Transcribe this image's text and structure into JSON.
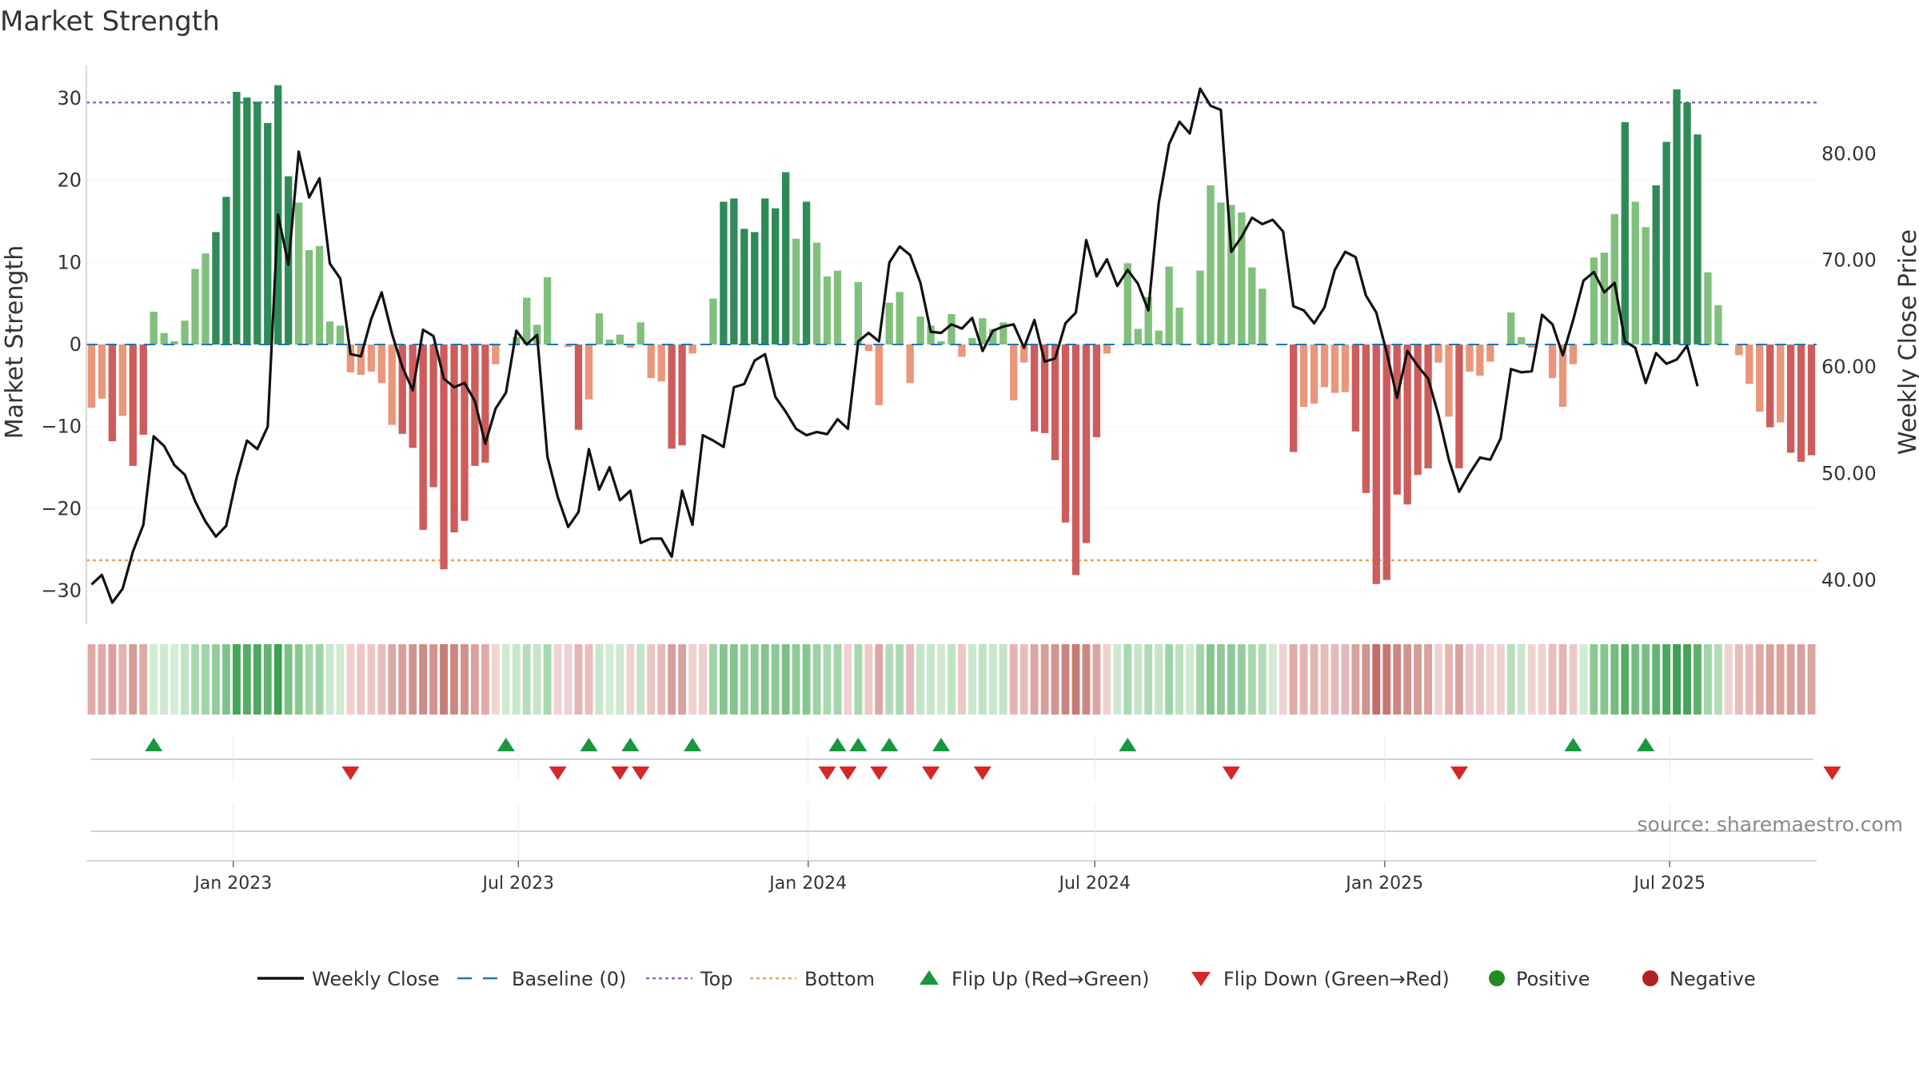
{
  "chart_data": {
    "type": "bar",
    "title": "Market Strength",
    "ylabel_left": "Market Strength",
    "ylabel_right": "Weekly Close Price",
    "ylim_left": [
      -34,
      34
    ],
    "ylim_right": [
      35.95,
      88.27
    ],
    "yticks_left": [
      30,
      20,
      10,
      0,
      -10,
      -20,
      -30
    ],
    "yticks_left_labels": [
      "30",
      "20",
      "10",
      "0",
      "−10",
      "−20",
      "−30"
    ],
    "yticks_right": [
      80,
      70,
      60,
      50,
      40
    ],
    "yticks_right_labels": [
      "80.00",
      "70.00",
      "60.00",
      "50.00",
      "40.00"
    ],
    "top_level": 29.5,
    "bottom_level": -26.3,
    "start_date": "2022-10-03",
    "end_date": "2025-09-29",
    "xticks": [
      {
        "date": "2023-01-01",
        "label": "Jan 2023"
      },
      {
        "date": "2023-07-01",
        "label": "Jul 2023"
      },
      {
        "date": "2024-01-01",
        "label": "Jan 2024"
      },
      {
        "date": "2024-07-01",
        "label": "Jul 2024"
      },
      {
        "date": "2025-01-01",
        "label": "Jan 2025"
      },
      {
        "date": "2025-07-01",
        "label": "Jul 2025"
      }
    ],
    "strength": [
      -7.7,
      -6.6,
      -11.8,
      -8.7,
      -14.8,
      -11,
      4,
      1.4,
      0.4,
      2.9,
      9.2,
      11.1,
      13.7,
      18,
      30.8,
      30.1,
      29.6,
      27,
      31.6,
      20.5,
      17.3,
      11.5,
      12,
      2.8,
      2.3,
      -3.4,
      -3.7,
      -3.3,
      -4.7,
      -9.8,
      -10.9,
      -12.6,
      -22.6,
      -17.4,
      -27.4,
      -22.9,
      -21.5,
      -14.8,
      -14.4,
      -2.4,
      0,
      0.9,
      5.7,
      2.4,
      8.2,
      0,
      -0.3,
      -10.4,
      -6.7,
      3.8,
      0.6,
      1.2,
      -0.4,
      2.7,
      -4.1,
      -4.5,
      -12.7,
      -12.3,
      -1.1,
      0,
      5.6,
      17.4,
      17.8,
      14.1,
      13.7,
      17.8,
      16.6,
      21,
      12.9,
      17.4,
      12.4,
      8.3,
      9,
      0,
      7.6,
      -0.8,
      -7.4,
      5.1,
      6.4,
      -4.7,
      3.4,
      2.3,
      0.4,
      3.7,
      -1.5,
      0.8,
      3.2,
      1.9,
      2.7,
      -6.8,
      -2.2,
      -10.6,
      -10.8,
      -14.1,
      -21.7,
      -28.1,
      -24.2,
      -11.3,
      -1.1,
      0,
      9.9,
      1.9,
      5.8,
      1.7,
      9.5,
      4.5,
      0,
      9,
      19.4,
      17.3,
      17,
      16.1,
      9.4,
      6.8,
      0,
      0,
      -13.1,
      -7.6,
      -7.2,
      -5.2,
      -5.9,
      -5.8,
      -10.6,
      -18.1,
      -29.2,
      -28.7,
      -18.3,
      -19.5,
      -15.9,
      -15.1,
      -2.2,
      -8.8,
      -15.1,
      -3.3,
      -3.8,
      -2.1,
      0,
      3.9,
      0.9,
      -0.4,
      0,
      -4.1,
      -7.6,
      -2.4,
      0,
      10.6,
      11.2,
      15.9,
      27.1,
      17.4,
      14.3,
      19.4,
      24.7,
      31.1,
      29.5,
      25.6,
      8.8,
      4.8,
      0,
      -1.3,
      -4.8,
      -8.2,
      -10.1,
      -9.5,
      -13.2,
      -14.3,
      -13.5
    ],
    "weekly_close": [
      39.6,
      40.5,
      37.9,
      39.2,
      42.7,
      45.2,
      53.5,
      52.6,
      50.8,
      49.9,
      47.4,
      45.5,
      44.1,
      45.1,
      49.6,
      53.1,
      52.3,
      54.4,
      74.3,
      69.6,
      80.2,
      75.9,
      77.7,
      69.7,
      68.3,
      61.2,
      61,
      64.5,
      67,
      63.1,
      60,
      57.8,
      63.5,
      62.9,
      58.9,
      58.1,
      58.5,
      56.8,
      52.8,
      56.1,
      57.6,
      63.4,
      62.1,
      63,
      51.6,
      47.8,
      45,
      46.4,
      52.3,
      48.5,
      50.6,
      47.5,
      48.4,
      43.5,
      43.9,
      43.9,
      42.2,
      48.4,
      45.2,
      53.6,
      53.1,
      52.5,
      58.1,
      58.4,
      60.6,
      61.2,
      57.2,
      55.8,
      54.2,
      53.6,
      53.9,
      53.7,
      55.1,
      54.2,
      62.4,
      63.2,
      62.4,
      69.8,
      71.3,
      70.5,
      67.9,
      63.3,
      63.2,
      64,
      63.6,
      64.6,
      61.5,
      63.4,
      63.8,
      64,
      61.8,
      64.4,
      60.5,
      60.8,
      64.1,
      65.1,
      71.9,
      68.5,
      70.1,
      67.6,
      69.1,
      67.8,
      65.3,
      75.4,
      80.9,
      83,
      81.9,
      86.1,
      84.5,
      84.1,
      70.8,
      72.2,
      74,
      73.4,
      73.8,
      72.7,
      65.7,
      65.3,
      64.1,
      65.6,
      69.1,
      70.8,
      70.3,
      66.7,
      65.1,
      61.4,
      57.1,
      61.5,
      60.1,
      58.9,
      55.5,
      51.3,
      48.3,
      50,
      51.5,
      51.3,
      53.3,
      59.8,
      59.5,
      59.6,
      64.9,
      64,
      61.1,
      64.4,
      68.1,
      68.9,
      67,
      67.9,
      62.4,
      61.8,
      58.5,
      61.3,
      60.3,
      60.7,
      62,
      58.2
    ],
    "band_colors": [
      "#dfaaa7",
      "#dfaaa7",
      "#dca09c",
      "#e3b4b0",
      "#d89b96",
      "#dfa9a5",
      "#d1ecd4",
      "#cce8d0",
      "#d4ecd7",
      "#bfe3c4",
      "#a9d9b0",
      "#9fd4a7",
      "#92cc9b",
      "#7fc38a",
      "#44a557",
      "#56ae66",
      "#4ea95f",
      "#63b473",
      "#3f9f53",
      "#7bc086",
      "#8ac892",
      "#a6d7ae",
      "#9fd3a8",
      "#cbe7ce",
      "#d0eacf",
      "#f1cfcf",
      "#ecc7c7",
      "#ecc7c7",
      "#e8bdbc",
      "#dba8a6",
      "#d69f9b",
      "#d19591",
      "#cd8a86",
      "#d4928e",
      "#c97d78",
      "#cc8782",
      "#d38f8b",
      "#dca09c",
      "#e0a9a5",
      "#f0d3d3",
      "#cfebcf",
      "#c8e6cb",
      "#b5dcba",
      "#c6e5c9",
      "#a8d8ae",
      "#efd3d3",
      "#eed1d1",
      "#e3b4b0",
      "#e8bdbc",
      "#c9e6cc",
      "#d2ebd4",
      "#cde8d0",
      "#efd3d3",
      "#c5e4c8",
      "#ebc5c5",
      "#e6bbbb",
      "#d69f9b",
      "#d9a29e",
      "#eed1d1",
      "#eecfcf",
      "#9fd3a8",
      "#86c590",
      "#83c48d",
      "#8fcb99",
      "#8ec997",
      "#84c58e",
      "#8cc995",
      "#7ac086",
      "#8fcb98",
      "#85c58f",
      "#9ad2a3",
      "#a9d9b1",
      "#a2d5aa",
      "#eed1d1",
      "#a6d7ae",
      "#ecc9c8",
      "#dba8a6",
      "#b2dcb8",
      "#aad9b1",
      "#e6bbbb",
      "#c2e3c6",
      "#c4e5c8",
      "#cfe9d1",
      "#bfe2c4",
      "#ecc7c7",
      "#cae6cd",
      "#c0e2c4",
      "#c8e6cb",
      "#c3e4c7",
      "#e3b4b0",
      "#e8bdbc",
      "#daa6a2",
      "#d69f9b",
      "#d39590",
      "#c98480",
      "#c57a74",
      "#cd8782",
      "#daa6a2",
      "#eed0d0",
      "#cfe9d1",
      "#a8d8ae",
      "#c4e5c8",
      "#b0dbb6",
      "#c5e4c8",
      "#9fd4a7",
      "#bbe1c0",
      "#d1eacf",
      "#a2d5aa",
      "#84c58e",
      "#8ec997",
      "#8ec997",
      "#96cd9f",
      "#a8d8ae",
      "#b3dcb8",
      "#d2ebd4",
      "#eed1d1",
      "#dfaaa7",
      "#e3b4b0",
      "#e3b4b0",
      "#e6bbbb",
      "#e6bbbb",
      "#e5b9b8",
      "#d9a29e",
      "#d19591",
      "#c26d69",
      "#c57874",
      "#cd8782",
      "#d19591",
      "#d49c97",
      "#d9a29e",
      "#eed1d1",
      "#e3b4b0",
      "#d9a29e",
      "#ecc7c7",
      "#ebc5c5",
      "#efd3d3",
      "#eed1d1",
      "#b7deba",
      "#cae6cd",
      "#efd3d3",
      "#efd3d3",
      "#e8bdbc",
      "#e3b4b0",
      "#ecc9c8",
      "#d2ebd4",
      "#8cc995",
      "#86c590",
      "#74bc80",
      "#55ad65",
      "#74bc80",
      "#7ac086",
      "#66b673",
      "#4ea95f",
      "#3f9f53",
      "#46a357",
      "#5cb06a",
      "#a2d5aa",
      "#b2dcb8",
      "#eed1d1",
      "#e8bdbc",
      "#e6bbbb",
      "#dfa9a5",
      "#dca09c",
      "#dca09c",
      "#d9a29e",
      "#d6a09c",
      "#d8a5a1"
    ],
    "flip_up_weeks": [
      6,
      40,
      48,
      52,
      58,
      72,
      74,
      77,
      82,
      100,
      143,
      150
    ],
    "flip_down_weeks": [
      25,
      45,
      51,
      53,
      71,
      73,
      76,
      81,
      86,
      110,
      132,
      168
    ],
    "legend": [
      {
        "label": "Weekly Close",
        "kind": "line",
        "color": "#111111"
      },
      {
        "label": "Baseline (0)",
        "kind": "dash",
        "color": "#1f77b4"
      },
      {
        "label": "Top",
        "kind": "dot",
        "color": "#9467bd"
      },
      {
        "label": "Bottom",
        "kind": "dot",
        "color": "#e6a15c"
      },
      {
        "label": "Flip Up (Red→Green)",
        "kind": "tri-up",
        "color": "#1a9641"
      },
      {
        "label": "Flip Down (Green→Red)",
        "kind": "tri-down",
        "color": "#d62728"
      },
      {
        "label": "Positive",
        "kind": "circle",
        "color": "#228b22"
      },
      {
        "label": "Negative",
        "kind": "circle",
        "color": "#b22222"
      }
    ],
    "source": "source: sharemaestro.com"
  },
  "colors": {
    "pos_strong": "#2e8b57",
    "pos_light": "#80c07c",
    "neg_strong": "#cd5c5c",
    "neg_light": "#e9967a",
    "close_line": "#111111",
    "baseline": "#1f77b4",
    "top": "#9467bd",
    "bottom": "#e6a15c",
    "flip_up": "#1a9641",
    "flip_down": "#d62728"
  }
}
